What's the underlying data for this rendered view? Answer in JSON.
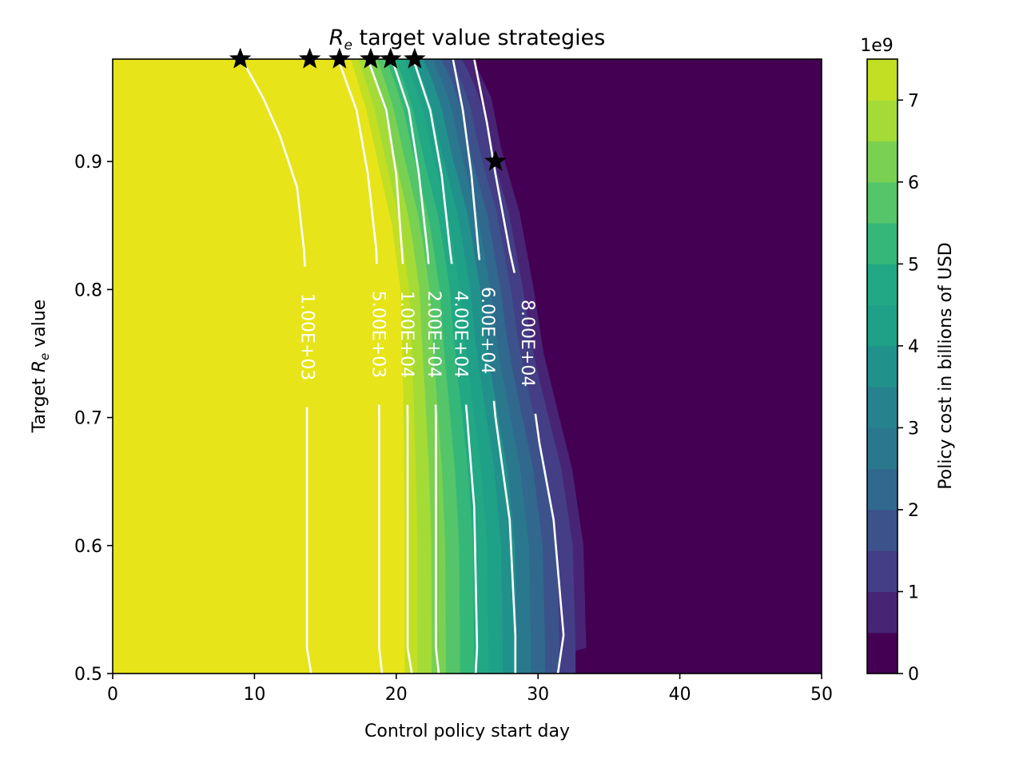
{
  "chart_data": {
    "type": "contour",
    "title": "R_e target value strategies",
    "title_parts": {
      "symbol": "R",
      "subscript": "e",
      "rest": " target value strategies"
    },
    "xlabel": "Control policy start day",
    "ylabel": "Target  R_e value",
    "ylabel_parts": {
      "prefix": "Target  ",
      "symbol": "R",
      "subscript": "e",
      "suffix": " value"
    },
    "xlim": [
      0,
      50
    ],
    "ylim": [
      0.5,
      0.98
    ],
    "x_ticks": [
      0,
      10,
      20,
      30,
      40,
      50
    ],
    "y_ticks": [
      0.5,
      0.6,
      0.7,
      0.8,
      0.9
    ],
    "y_tick_labels": [
      "0.5",
      "0.6",
      "0.7",
      "0.8",
      "0.9"
    ],
    "colorbar": {
      "label": "Policy cost in billions of USD",
      "offset_text": "1e9",
      "range": [
        0,
        7.5
      ],
      "ticks": [
        0,
        1,
        2,
        3,
        4,
        5,
        6,
        7
      ],
      "levels": [
        0,
        0.5,
        1,
        1.5,
        2,
        2.5,
        3,
        3.5,
        4,
        4.5,
        5,
        5.5,
        6,
        6.5,
        7,
        7.5
      ],
      "colors": [
        "#440154",
        "#482475",
        "#433e85",
        "#3b528b",
        "#31688e",
        "#2a788e",
        "#26828e",
        "#21918c",
        "#1fa187",
        "#22a884",
        "#35b779",
        "#54c568",
        "#7ad151",
        "#a5db36",
        "#c2df23",
        "#e7e419"
      ]
    },
    "fill": {
      "high_color": "#e7e419",
      "low_color": "#482475",
      "lowest_color": "#440154",
      "mid_colors": [
        "#c2df23",
        "#a5db36",
        "#7ad151",
        "#54c568",
        "#35b779",
        "#22a884",
        "#1fa187",
        "#21918c",
        "#2a788e",
        "#31688e",
        "#3b528b",
        "#433e85"
      ],
      "edge_left": [
        [
          20.5,
          0.5
        ],
        [
          20.5,
          0.62
        ],
        [
          20.4,
          0.72
        ],
        [
          20.2,
          0.8
        ],
        [
          19.6,
          0.85
        ],
        [
          18.6,
          0.9
        ],
        [
          17.8,
          0.94
        ],
        [
          16.7,
          0.98
        ]
      ],
      "edge_right": [
        [
          32.5,
          0.52
        ],
        [
          32.3,
          0.6
        ],
        [
          31.5,
          0.66
        ],
        [
          30.6,
          0.7
        ],
        [
          29.5,
          0.75
        ],
        [
          28.8,
          0.8
        ],
        [
          27.8,
          0.86
        ],
        [
          26.5,
          0.91
        ],
        [
          25.8,
          0.95
        ],
        [
          24.5,
          0.98
        ]
      ]
    },
    "contours": [
      {
        "label": "1.00E+03",
        "points": [
          [
            14.0,
            0.5
          ],
          [
            13.7,
            0.52
          ],
          [
            13.7,
            0.69
          ],
          [
            13.7,
            0.79
          ],
          [
            13.5,
            0.83
          ],
          [
            13.0,
            0.88
          ],
          [
            11.8,
            0.92
          ],
          [
            10.6,
            0.95
          ],
          [
            9.1,
            0.98
          ]
        ]
      },
      {
        "label": "5.00E+03",
        "points": [
          [
            19.0,
            0.5
          ],
          [
            18.8,
            0.52
          ],
          [
            18.8,
            0.7
          ],
          [
            18.7,
            0.78
          ],
          [
            18.6,
            0.83
          ],
          [
            18.0,
            0.89
          ],
          [
            17.2,
            0.94
          ],
          [
            15.9,
            0.98
          ]
        ]
      },
      {
        "label": "1.00E+04",
        "points": [
          [
            21.1,
            0.5
          ],
          [
            20.8,
            0.52
          ],
          [
            20.8,
            0.7
          ],
          [
            20.7,
            0.78
          ],
          [
            20.4,
            0.83
          ],
          [
            20.0,
            0.89
          ],
          [
            19.3,
            0.94
          ],
          [
            18.0,
            0.98
          ]
        ]
      },
      {
        "label": "2.00E+04",
        "points": [
          [
            23.0,
            0.5
          ],
          [
            22.8,
            0.52
          ],
          [
            22.8,
            0.7
          ],
          [
            22.6,
            0.78
          ],
          [
            22.2,
            0.83
          ],
          [
            21.6,
            0.89
          ],
          [
            20.9,
            0.94
          ],
          [
            19.7,
            0.98
          ]
        ]
      },
      {
        "label": "4.00E+04",
        "points": [
          [
            25.6,
            0.5
          ],
          [
            25.7,
            0.52
          ],
          [
            25.5,
            0.63
          ],
          [
            25.0,
            0.7
          ],
          [
            24.4,
            0.78
          ],
          [
            23.8,
            0.83
          ],
          [
            23.2,
            0.89
          ],
          [
            22.4,
            0.94
          ],
          [
            21.2,
            0.98
          ]
        ]
      },
      {
        "label": "6.00E+04",
        "points": [
          [
            28.4,
            0.5
          ],
          [
            28.4,
            0.53
          ],
          [
            28.0,
            0.62
          ],
          [
            27.0,
            0.7
          ],
          [
            26.3,
            0.78
          ],
          [
            25.8,
            0.83
          ],
          [
            25.3,
            0.89
          ],
          [
            24.7,
            0.94
          ],
          [
            24.0,
            0.98
          ]
        ]
      },
      {
        "label": "8.00E+04",
        "points": [
          [
            31.4,
            0.5
          ],
          [
            31.8,
            0.53
          ],
          [
            31.1,
            0.62
          ],
          [
            30.1,
            0.68
          ],
          [
            29.6,
            0.72
          ],
          [
            29.0,
            0.78
          ],
          [
            28.0,
            0.83
          ],
          [
            27.0,
            0.89
          ],
          [
            26.4,
            0.93
          ],
          [
            25.5,
            0.98
          ]
        ]
      }
    ],
    "markers": {
      "symbol": "star",
      "color": "#000000",
      "points": [
        [
          9.0,
          0.98
        ],
        [
          13.9,
          0.98
        ],
        [
          16.0,
          0.98
        ],
        [
          18.2,
          0.98
        ],
        [
          19.6,
          0.98
        ],
        [
          21.3,
          0.98
        ],
        [
          27.0,
          0.9
        ]
      ]
    }
  }
}
